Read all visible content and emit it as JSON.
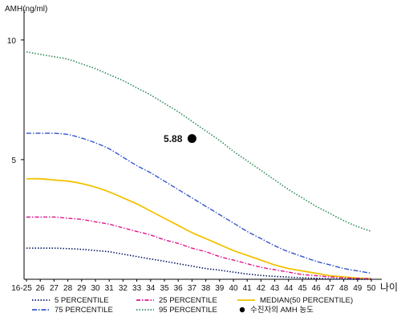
{
  "chart_data": {
    "type": "line",
    "ylabel": "AMH(ng/ml)",
    "xlabel": "나이",
    "categories": [
      "16-25",
      "26",
      "27",
      "28",
      "29",
      "30",
      "31",
      "32",
      "33",
      "34",
      "35",
      "36",
      "37",
      "38",
      "39",
      "40",
      "41",
      "42",
      "43",
      "44",
      "45",
      "46",
      "47",
      "48",
      "49",
      "50"
    ],
    "y_ticks": [
      5,
      10
    ],
    "ylim": [
      0,
      11
    ],
    "series": [
      {
        "name": "95 PERCENTILE",
        "color": "#2e8b57",
        "dash": "1.5,2",
        "width": 1.6,
        "values": [
          9.5,
          9.4,
          9.3,
          9.2,
          9.0,
          8.8,
          8.55,
          8.3,
          8.0,
          7.7,
          7.35,
          7.0,
          6.6,
          6.2,
          5.8,
          5.35,
          4.95,
          4.55,
          4.15,
          3.75,
          3.4,
          3.05,
          2.75,
          2.45,
          2.2,
          2.0
        ]
      },
      {
        "name": "75 PERCENTILE",
        "color": "#3355cc",
        "dash": "6,2,1.5,2",
        "width": 1.4,
        "values": [
          6.1,
          6.1,
          6.1,
          6.05,
          5.9,
          5.7,
          5.45,
          5.1,
          4.75,
          4.45,
          4.1,
          3.75,
          3.4,
          3.05,
          2.7,
          2.35,
          2.0,
          1.7,
          1.4,
          1.15,
          0.95,
          0.75,
          0.6,
          0.45,
          0.35,
          0.25
        ]
      },
      {
        "name": "MEDIAN(50 PERCENTILE)",
        "color": "#f2c200",
        "dash": "",
        "width": 1.8,
        "values": [
          4.2,
          4.2,
          4.15,
          4.1,
          4.0,
          3.85,
          3.65,
          3.4,
          3.15,
          2.85,
          2.55,
          2.25,
          1.95,
          1.7,
          1.45,
          1.2,
          1.0,
          0.8,
          0.6,
          0.45,
          0.35,
          0.25,
          0.15,
          0.1,
          0.05,
          0.03
        ]
      },
      {
        "name": "25 PERCENTILE",
        "color": "#e0148c",
        "dash": "5,2,1.5,2",
        "width": 1.4,
        "values": [
          2.6,
          2.6,
          2.6,
          2.55,
          2.5,
          2.4,
          2.3,
          2.15,
          2.0,
          1.85,
          1.65,
          1.5,
          1.3,
          1.15,
          0.95,
          0.8,
          0.65,
          0.5,
          0.4,
          0.3,
          0.2,
          0.15,
          0.1,
          0.06,
          0.04,
          0.02
        ]
      },
      {
        "name": "5 PERCENTILE",
        "color": "#0a1a66",
        "dash": "1.5,2",
        "width": 1.6,
        "values": [
          1.3,
          1.3,
          1.3,
          1.28,
          1.25,
          1.2,
          1.15,
          1.05,
          0.95,
          0.85,
          0.75,
          0.65,
          0.55,
          0.45,
          0.38,
          0.3,
          0.22,
          0.16,
          0.12,
          0.09,
          0.06,
          0.04,
          0.02,
          0.01,
          0.0,
          0.0
        ]
      }
    ],
    "point": {
      "x": "37",
      "y": 5.88,
      "label": "5.88",
      "color": "#000000"
    },
    "legend": [
      {
        "label": "5 PERCENTILE",
        "kind": "line",
        "color": "#0a1a66",
        "dash": "1.5,2"
      },
      {
        "label": "25 PERCENTILE",
        "kind": "line",
        "color": "#e0148c",
        "dash": "5,2,1.5,2"
      },
      {
        "label": "MEDIAN(50 PERCENTILE)",
        "kind": "line",
        "color": "#f2c200",
        "dash": ""
      },
      {
        "label": "75 PERCENTILE",
        "kind": "line",
        "color": "#3355cc",
        "dash": "6,2,1.5,2"
      },
      {
        "label": "95 PERCENTILE",
        "kind": "line",
        "color": "#2e8b57",
        "dash": "1.5,2"
      },
      {
        "label": "수진자의 AMH 농도",
        "kind": "dot",
        "color": "#000000",
        "dash": ""
      }
    ]
  }
}
